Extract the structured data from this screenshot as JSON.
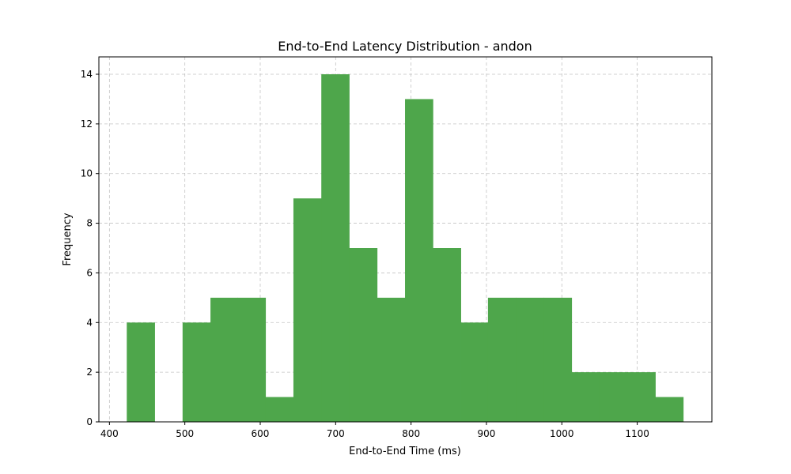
{
  "chart_data": {
    "type": "bar",
    "title": "End-to-End Latency Distribution - andon",
    "xlabel": "End-to-End Time (ms)",
    "ylabel": "Frequency",
    "xlim": [
      386,
      1199
    ],
    "ylim": [
      0,
      14.7
    ],
    "xticks": [
      400,
      500,
      600,
      700,
      800,
      900,
      1000,
      1100
    ],
    "yticks": [
      0,
      2,
      4,
      6,
      8,
      10,
      12,
      14
    ],
    "grid": true,
    "bar_color": "#4ea64b",
    "bins": [
      {
        "x0": 423,
        "x1": 460,
        "count": 4
      },
      {
        "x0": 460,
        "x1": 497,
        "count": 0
      },
      {
        "x0": 497,
        "x1": 534,
        "count": 4
      },
      {
        "x0": 534,
        "x1": 570,
        "count": 5
      },
      {
        "x0": 570,
        "x1": 607,
        "count": 5
      },
      {
        "x0": 607,
        "x1": 644,
        "count": 1
      },
      {
        "x0": 644,
        "x1": 681,
        "count": 9
      },
      {
        "x0": 681,
        "x1": 718,
        "count": 14
      },
      {
        "x0": 718,
        "x1": 755,
        "count": 7
      },
      {
        "x0": 755,
        "x1": 792,
        "count": 5
      },
      {
        "x0": 792,
        "x1": 829,
        "count": 13
      },
      {
        "x0": 829,
        "x1": 866,
        "count": 7
      },
      {
        "x0": 866,
        "x1": 902,
        "count": 4
      },
      {
        "x0": 902,
        "x1": 939,
        "count": 5
      },
      {
        "x0": 939,
        "x1": 976,
        "count": 5
      },
      {
        "x0": 976,
        "x1": 1013,
        "count": 5
      },
      {
        "x0": 1013,
        "x1": 1050,
        "count": 2
      },
      {
        "x0": 1050,
        "x1": 1087,
        "count": 2
      },
      {
        "x0": 1087,
        "x1": 1124,
        "count": 2
      },
      {
        "x0": 1124,
        "x1": 1161,
        "count": 1
      }
    ]
  }
}
